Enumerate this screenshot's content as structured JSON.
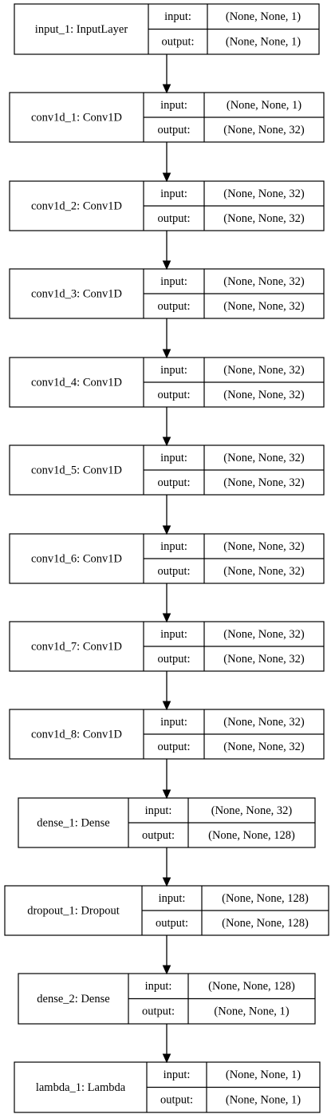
{
  "nodes": [
    {
      "name": "input_1: InputLayer",
      "input_label": "input:",
      "output_label": "output:",
      "input": "(None, None, 1)",
      "output": "(None, None, 1)"
    },
    {
      "name": "conv1d_1: Conv1D",
      "input_label": "input:",
      "output_label": "output:",
      "input": "(None, None, 1)",
      "output": "(None, None, 32)"
    },
    {
      "name": "conv1d_2: Conv1D",
      "input_label": "input:",
      "output_label": "output:",
      "input": "(None, None, 32)",
      "output": "(None, None, 32)"
    },
    {
      "name": "conv1d_3: Conv1D",
      "input_label": "input:",
      "output_label": "output:",
      "input": "(None, None, 32)",
      "output": "(None, None, 32)"
    },
    {
      "name": "conv1d_4: Conv1D",
      "input_label": "input:",
      "output_label": "output:",
      "input": "(None, None, 32)",
      "output": "(None, None, 32)"
    },
    {
      "name": "conv1d_5: Conv1D",
      "input_label": "input:",
      "output_label": "output:",
      "input": "(None, None, 32)",
      "output": "(None, None, 32)"
    },
    {
      "name": "conv1d_6: Conv1D",
      "input_label": "input:",
      "output_label": "output:",
      "input": "(None, None, 32)",
      "output": "(None, None, 32)"
    },
    {
      "name": "conv1d_7: Conv1D",
      "input_label": "input:",
      "output_label": "output:",
      "input": "(None, None, 32)",
      "output": "(None, None, 32)"
    },
    {
      "name": "conv1d_8: Conv1D",
      "input_label": "input:",
      "output_label": "output:",
      "input": "(None, None, 32)",
      "output": "(None, None, 32)"
    },
    {
      "name": "dense_1: Dense",
      "input_label": "input:",
      "output_label": "output:",
      "input": "(None, None, 32)",
      "output": "(None, None, 128)"
    },
    {
      "name": "dropout_1: Dropout",
      "input_label": "input:",
      "output_label": "output:",
      "input": "(None, None, 128)",
      "output": "(None, None, 128)"
    },
    {
      "name": "dense_2: Dense",
      "input_label": "input:",
      "output_label": "output:",
      "input": "(None, None, 128)",
      "output": "(None, None, 1)"
    },
    {
      "name": "lambda_1: Lambda",
      "input_label": "input:",
      "output_label": "output:",
      "input": "(None, None, 1)",
      "output": "(None, None, 1)"
    }
  ],
  "edges": [
    {
      "from": 0,
      "to": 1
    },
    {
      "from": 1,
      "to": 2
    },
    {
      "from": 2,
      "to": 3
    },
    {
      "from": 3,
      "to": 4
    },
    {
      "from": 4,
      "to": 5
    },
    {
      "from": 5,
      "to": 6
    },
    {
      "from": 6,
      "to": 7
    },
    {
      "from": 7,
      "to": 8
    },
    {
      "from": 8,
      "to": 9
    },
    {
      "from": 9,
      "to": 10
    },
    {
      "from": 10,
      "to": 11
    },
    {
      "from": 11,
      "to": 12
    }
  ]
}
